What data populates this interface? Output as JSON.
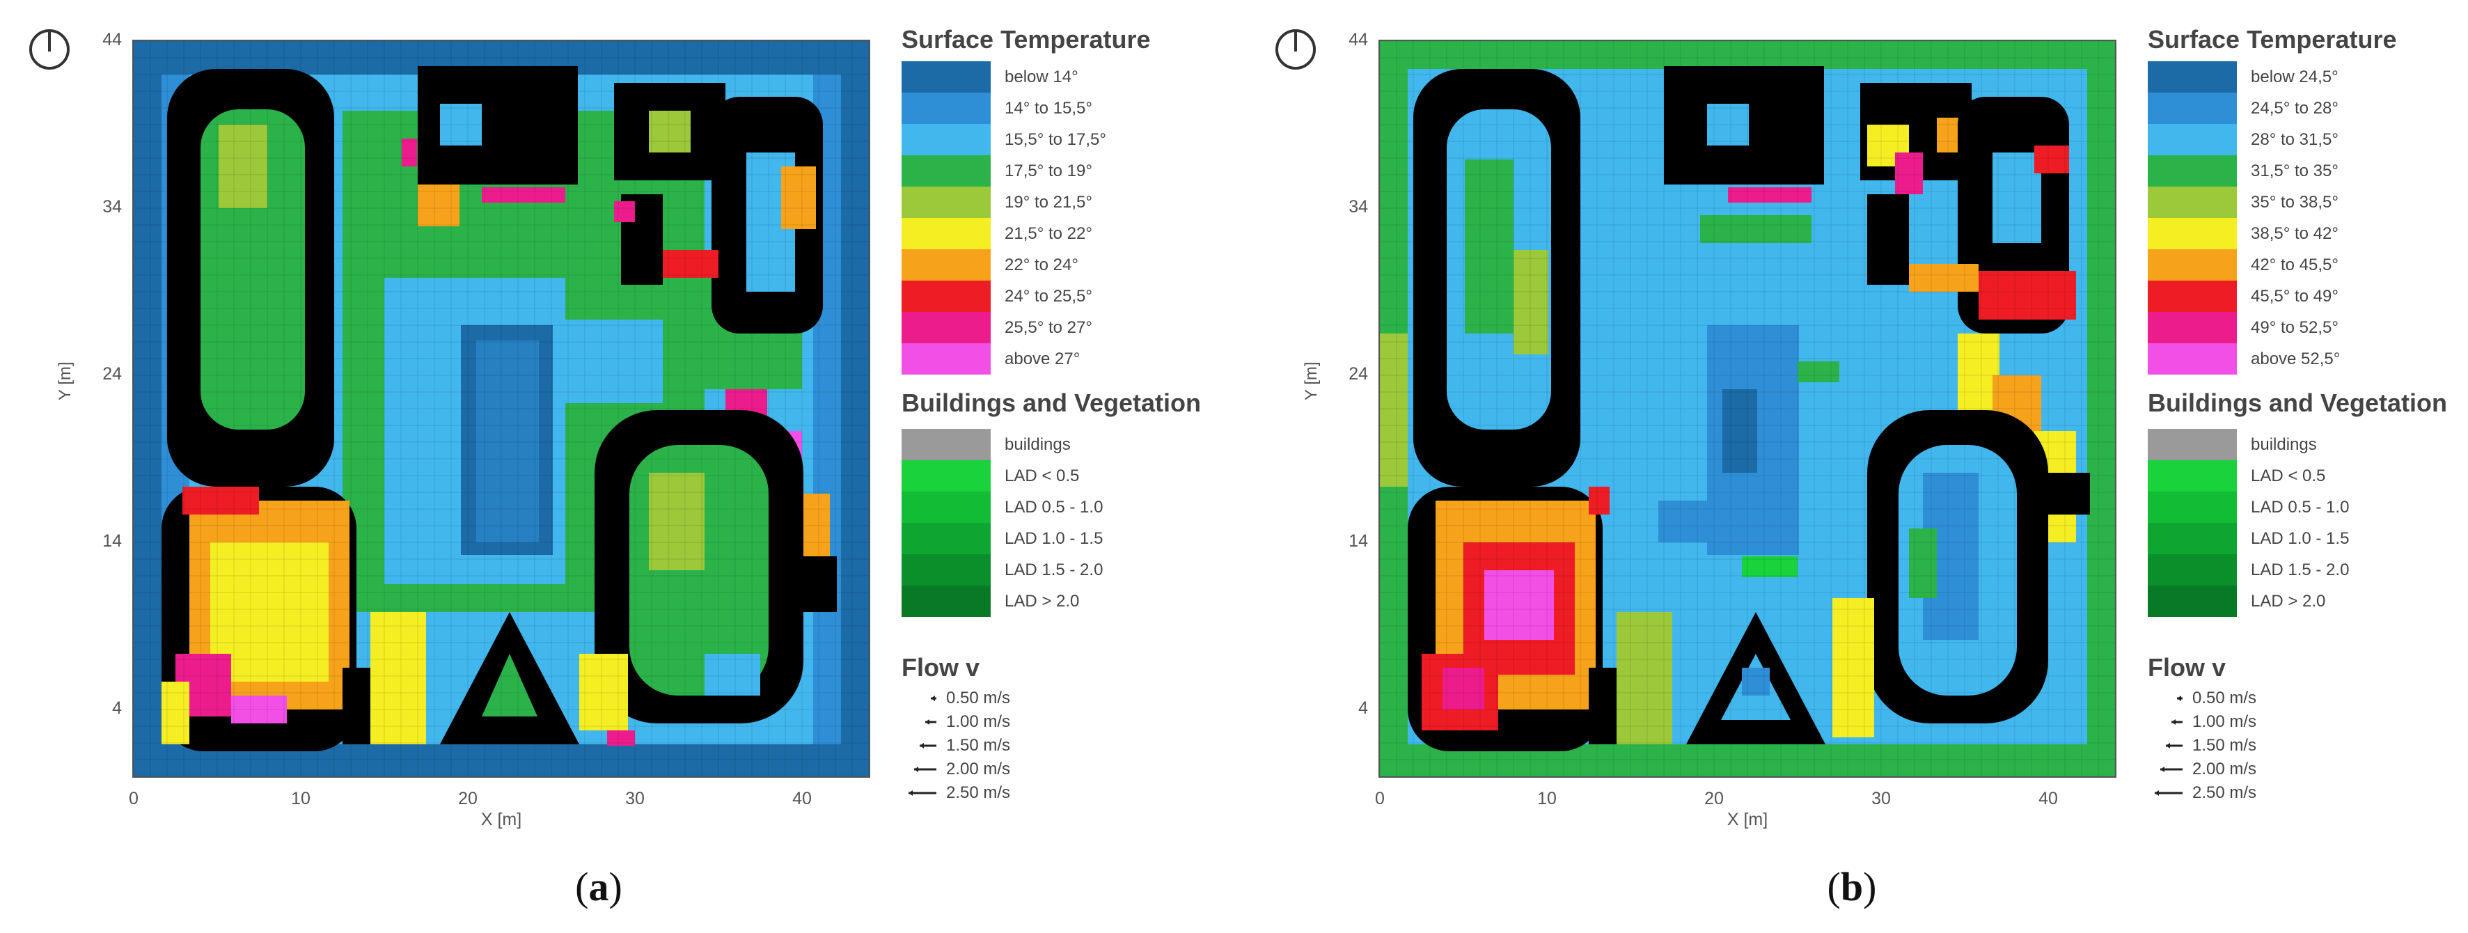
{
  "axes": {
    "y_ticks": [
      "44",
      "34",
      "24",
      "14",
      "4"
    ],
    "x_ticks": [
      "0",
      "10",
      "20",
      "30",
      "40"
    ],
    "y_label": "Y [m]",
    "x_label": "X [m]"
  },
  "panels": [
    {
      "caption_letter": "a",
      "temperature": {
        "title": "Surface Temperature",
        "classes": [
          {
            "label": "below 14°",
            "color": "#1c6aa6"
          },
          {
            "label": "14° to 15,5°",
            "color": "#2f8fd6"
          },
          {
            "label": "15,5° to 17,5°",
            "color": "#41b7ee"
          },
          {
            "label": "17,5° to 19°",
            "color": "#2bb34a"
          },
          {
            "label": "19° to 21,5°",
            "color": "#9bc93a"
          },
          {
            "label": "21,5° to 22°",
            "color": "#f5ee22"
          },
          {
            "label": "22° to 24°",
            "color": "#f7a21b"
          },
          {
            "label": "24° to 25,5°",
            "color": "#ee1c24"
          },
          {
            "label": "25,5° to 27°",
            "color": "#ec1c8c"
          },
          {
            "label": "above 27°",
            "color": "#f24fe6"
          }
        ]
      },
      "vegetation": {
        "title": "Buildings and Vegetation",
        "classes": [
          {
            "label": "buildings",
            "color": "#9a9a9a"
          },
          {
            "label": "LAD < 0.5",
            "color": "#19d23c"
          },
          {
            "label": "LAD 0.5 - 1.0",
            "color": "#12bd35"
          },
          {
            "label": "LAD 1.0 - 1.5",
            "color": "#0ea530"
          },
          {
            "label": "LAD 1.5 - 2.0",
            "color": "#0b8f2b"
          },
          {
            "label": "LAD > 2.0",
            "color": "#087a25"
          }
        ]
      },
      "flow": {
        "title": "Flow v",
        "classes": [
          "0.50 m/s",
          "1.00 m/s",
          "1.50 m/s",
          "2.00 m/s",
          "2.50 m/s"
        ]
      }
    },
    {
      "caption_letter": "b",
      "temperature": {
        "title": "Surface Temperature",
        "classes": [
          {
            "label": "below 24,5°",
            "color": "#1c6aa6"
          },
          {
            "label": "24,5° to 28°",
            "color": "#2f8fd6"
          },
          {
            "label": "28° to 31,5°",
            "color": "#41b7ee"
          },
          {
            "label": "31,5° to 35°",
            "color": "#2bb34a"
          },
          {
            "label": "35° to 38,5°",
            "color": "#9bc93a"
          },
          {
            "label": "38,5° to 42°",
            "color": "#f5ee22"
          },
          {
            "label": "42° to 45,5°",
            "color": "#f7a21b"
          },
          {
            "label": "45,5° to 49°",
            "color": "#ee1c24"
          },
          {
            "label": "49° to 52,5°",
            "color": "#ec1c8c"
          },
          {
            "label": "above 52,5°",
            "color": "#f24fe6"
          }
        ]
      },
      "vegetation": {
        "title": "Buildings and Vegetation",
        "classes": [
          {
            "label": "buildings",
            "color": "#9a9a9a"
          },
          {
            "label": "LAD < 0.5",
            "color": "#19d23c"
          },
          {
            "label": "LAD 0.5 - 1.0",
            "color": "#12bd35"
          },
          {
            "label": "LAD 1.0 - 1.5",
            "color": "#0ea530"
          },
          {
            "label": "LAD 1.5 - 2.0",
            "color": "#0b8f2b"
          },
          {
            "label": "LAD > 2.0",
            "color": "#087a25"
          }
        ]
      },
      "flow": {
        "title": "Flow v",
        "classes": [
          "0.50 m/s",
          "1.00 m/s",
          "1.50 m/s",
          "2.00 m/s",
          "2.50 m/s"
        ]
      }
    }
  ]
}
